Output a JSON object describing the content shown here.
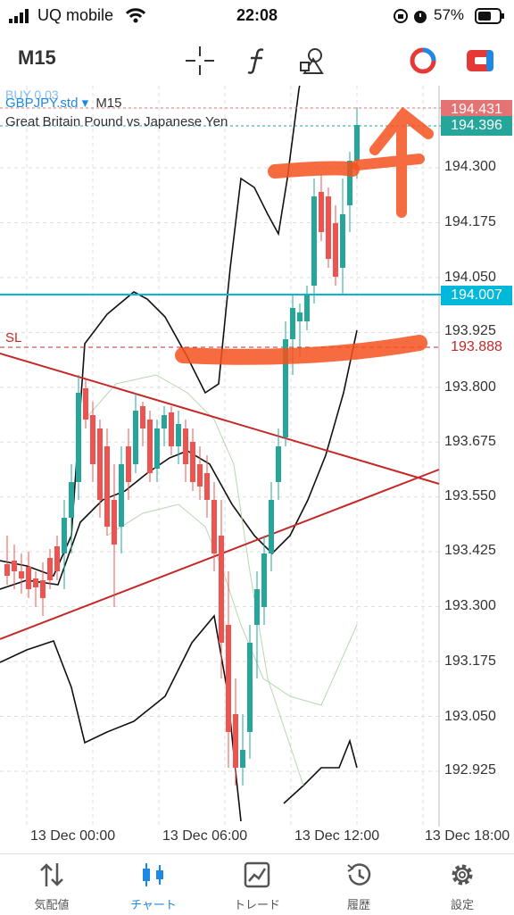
{
  "status_bar": {
    "carrier": "UQ mobile",
    "time": "22:08",
    "battery": "57%"
  },
  "toolbar": {
    "timeframe": "M15"
  },
  "chart": {
    "order_tag": "BUY 0.03",
    "symbol": "GBPJPY.std",
    "symbol_timeframe": "M15",
    "description": "Great Britain Pound vs Japanese Yen",
    "sl_label": "SL",
    "y_ticks": [
      "194.300",
      "194.175",
      "194.050",
      "193.925",
      "193.800",
      "193.675",
      "193.550",
      "193.425",
      "193.300",
      "193.175",
      "193.050",
      "192.925"
    ],
    "price_tags": {
      "ask": "194.431",
      "bid": "194.396",
      "order": "194.007",
      "sl": "193.888"
    },
    "x_ticks": [
      "13 Dec 00:00",
      "13 Dec 06:00",
      "13 Dec 12:00",
      "13 Dec 18:00"
    ],
    "colors": {
      "bull": "#26a69a",
      "bear": "#ef5350",
      "line_blue": "#00b8d9",
      "trend_red": "#c62828",
      "annotation": "#f4511e"
    }
  },
  "chart_data": {
    "type": "candlestick",
    "symbol": "GBPJPY.std",
    "ylim": [
      192.85,
      194.46
    ],
    "levels": {
      "ask": 194.431,
      "bid": 194.396,
      "order_line": 194.007,
      "stop_loss": 193.888
    }
  },
  "nav": [
    {
      "label": "気配値",
      "icon": "quotes-icon"
    },
    {
      "label": "チャート",
      "icon": "chart-icon",
      "active": true
    },
    {
      "label": "トレード",
      "icon": "trade-icon"
    },
    {
      "label": "履歴",
      "icon": "history-icon"
    },
    {
      "label": "設定",
      "icon": "settings-icon"
    }
  ]
}
